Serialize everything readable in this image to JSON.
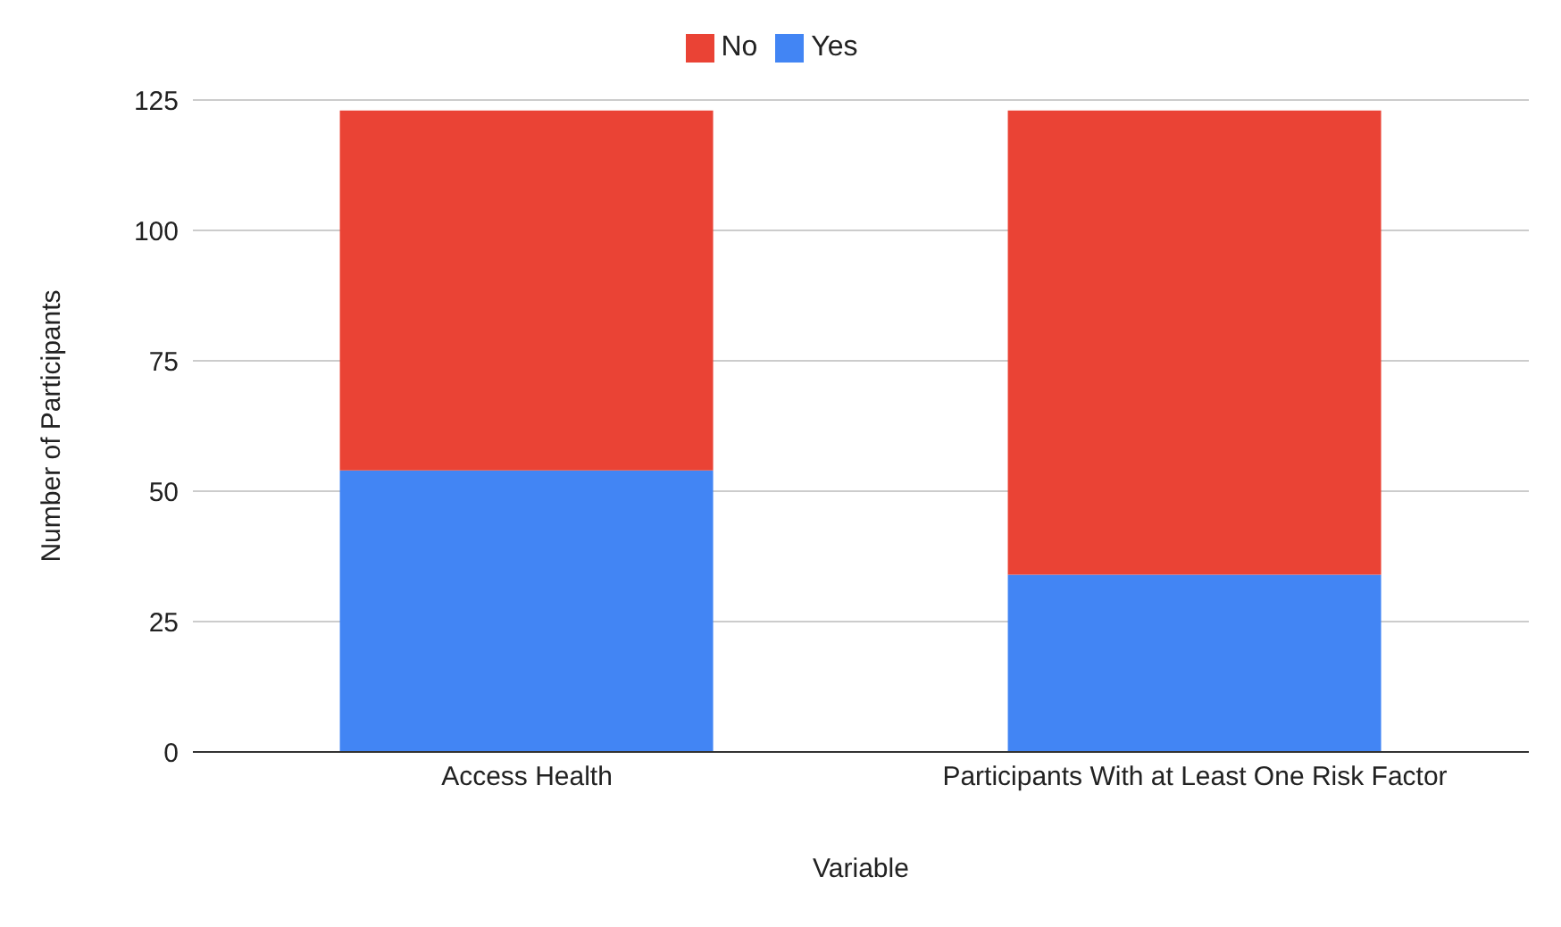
{
  "chart_data": {
    "type": "bar",
    "stacked": true,
    "xlabel": "Variable",
    "ylabel": "Number of Participants",
    "categories": [
      "Access Health",
      "Participants With at Least One Risk Factor"
    ],
    "series": [
      {
        "name": "Yes",
        "color": "#4285f4",
        "values": [
          54,
          34
        ]
      },
      {
        "name": "No",
        "color": "#ea4335",
        "values": [
          69,
          89
        ]
      }
    ],
    "ylim": [
      0,
      125
    ],
    "yticks": [
      0,
      25,
      50,
      75,
      100,
      125
    ],
    "grid": "y",
    "legend": "top"
  }
}
